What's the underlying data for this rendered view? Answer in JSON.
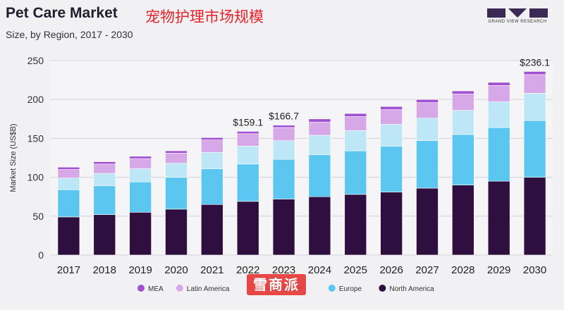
{
  "header": {
    "title": "Pet Care Market",
    "title_cn": "宠物护理市场规模",
    "subtitle": "Size, by Region, 2017 - 2030",
    "logo_text": "GRAND VIEW RESEARCH"
  },
  "watermark": "雪商派",
  "chart_data": {
    "type": "bar",
    "stacked": true,
    "title": "Pet Care Market",
    "subtitle": "Size, by Region, 2017 - 2030",
    "xlabel": "",
    "ylabel": "Market Size (US$B)",
    "ylim": [
      0,
      250
    ],
    "yticks": [
      0,
      50,
      100,
      150,
      200,
      250
    ],
    "grid": true,
    "legend_position": "bottom",
    "categories": [
      "2017",
      "2018",
      "2019",
      "2020",
      "2021",
      "2022",
      "2023",
      "2024",
      "2025",
      "2026",
      "2027",
      "2028",
      "2029",
      "2030"
    ],
    "series": [
      {
        "name": "North America",
        "color": "#2f0f40",
        "values": [
          49,
          52,
          55,
          59,
          65,
          69,
          72,
          75,
          78,
          81,
          86,
          90,
          95,
          100
        ]
      },
      {
        "name": "Europe",
        "color": "#5bc6f0",
        "values": [
          35,
          37,
          39,
          41,
          46,
          48,
          51,
          54,
          56,
          59,
          61,
          65,
          69,
          73
        ]
      },
      {
        "name": "Asia Pacific",
        "color": "#bde6f6",
        "values": [
          15,
          16,
          17,
          18,
          21,
          23,
          24,
          25,
          26,
          28,
          29,
          31,
          33,
          35
        ]
      },
      {
        "name": "Latin America",
        "color": "#d6a8e8",
        "values": [
          11,
          12,
          13,
          13,
          16,
          16,
          17,
          17,
          18,
          19,
          20,
          21,
          21,
          24
        ]
      },
      {
        "name": "MEA",
        "color": "#a050d0",
        "values": [
          3,
          3,
          3,
          3,
          3,
          3,
          3,
          4,
          4,
          4,
          4,
          4,
          4,
          4
        ]
      }
    ],
    "annotations": [
      {
        "category": "2022",
        "text": "$159.1"
      },
      {
        "category": "2023",
        "text": "$166.7"
      },
      {
        "category": "2030",
        "text": "$236.1"
      }
    ],
    "legend_order": [
      "MEA",
      "Latin America",
      "Asia Pacific",
      "Europe",
      "North America"
    ]
  }
}
